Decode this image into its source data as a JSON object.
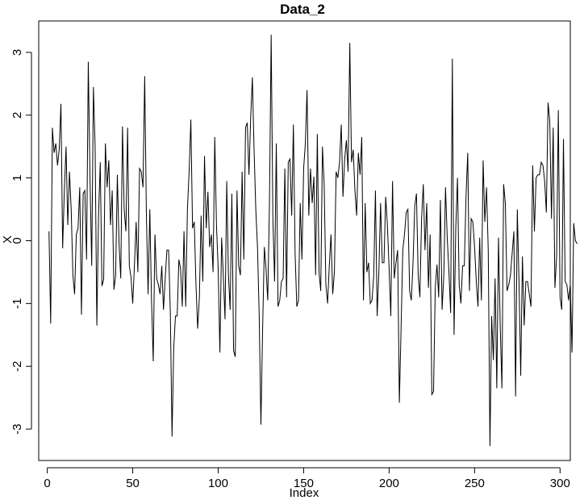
{
  "chart_data": {
    "type": "line",
    "title": "Data_2",
    "xlabel": "Index",
    "ylabel": "X",
    "xlim": [
      -5,
      306
    ],
    "ylim": [
      -3.5,
      3.5
    ],
    "x_ticks": [
      0,
      50,
      100,
      150,
      200,
      250,
      300
    ],
    "y_ticks": [
      -3,
      -2,
      -1,
      0,
      1,
      2,
      3
    ],
    "grid": false,
    "legend": "none",
    "line_color": "#000000",
    "series": [
      {
        "x_start": 1,
        "x_step": 1,
        "values": [
          0.15,
          -1.32,
          1.8,
          1.4,
          1.55,
          1.2,
          1.45,
          2.18,
          -0.12,
          0.8,
          1.5,
          0.25,
          1.1,
          0.5,
          -0.55,
          -0.85,
          0.1,
          0.2,
          0.85,
          -1.18,
          0.75,
          0.8,
          -0.3,
          2.85,
          1.0,
          -0.4,
          2.45,
          1.5,
          -1.35,
          0.4,
          1.25,
          -0.72,
          -0.62,
          1.55,
          0.85,
          1.28,
          0.25,
          0.8,
          -0.78,
          -0.55,
          1.05,
          -0.05,
          -0.6,
          1.82,
          0.5,
          0.15,
          1.8,
          -0.4,
          -0.58,
          -1.0,
          -0.4,
          0.3,
          -0.5,
          1.15,
          1.1,
          0.85,
          2.62,
          0.4,
          -0.85,
          0.5,
          -0.95,
          -1.92,
          0.1,
          -0.6,
          -0.7,
          -0.85,
          -0.4,
          -1.1,
          -0.6,
          -0.15,
          -0.15,
          -1.15,
          -3.12,
          -1.7,
          -1.2,
          -1.2,
          -0.3,
          -0.45,
          -1.05,
          0.15,
          -1.05,
          0.5,
          1.1,
          1.93,
          0.2,
          0.3,
          -0.7,
          -1.4,
          -0.9,
          0.4,
          -0.65,
          1.35,
          0.2,
          0.78,
          -0.1,
          0.1,
          -0.5,
          1.65,
          0.25,
          -0.45,
          -1.78,
          0.05,
          -0.55,
          -1.25,
          0.95,
          -0.55,
          -1.1,
          0.75,
          -1.75,
          -1.85,
          0.8,
          -0.4,
          -0.55,
          1.1,
          -0.3,
          1.8,
          1.88,
          1.05,
          1.95,
          2.6,
          1.45,
          0.5,
          -0.1,
          -1.2,
          -2.93,
          -1.4,
          -0.1,
          -0.45,
          -0.95,
          0.6,
          3.28,
          0.35,
          -0.65,
          1.55,
          -1.05,
          -0.95,
          -0.65,
          -0.6,
          1.15,
          -0.9,
          1.25,
          1.3,
          0.4,
          1.85,
          -0.2,
          -1.05,
          -0.95,
          0.6,
          -0.3,
          1.15,
          1.55,
          2.4,
          0.4,
          1.15,
          0.6,
          1.02,
          -0.55,
          1.7,
          -0.5,
          -0.8,
          1.5,
          0.9,
          -0.7,
          -1.0,
          -0.4,
          0.1,
          -0.85,
          -0.5,
          1.1,
          1.0,
          1.25,
          1.85,
          0.7,
          1.3,
          1.6,
          1.1,
          3.15,
          1.25,
          1.45,
          0.8,
          0.4,
          1.4,
          1.05,
          1.65,
          -0.95,
          0.6,
          -0.5,
          -0.35,
          -1.0,
          -0.95,
          -0.55,
          0.8,
          -1.2,
          -0.5,
          0.6,
          -0.35,
          -0.35,
          0.7,
          0.25,
          -0.45,
          -1.2,
          0.95,
          -0.6,
          -0.35,
          -0.15,
          -2.58,
          -1.4,
          -0.15,
          0.1,
          0.45,
          0.5,
          -0.8,
          -0.95,
          -0.35,
          0.55,
          0.75,
          -0.55,
          -0.9,
          0.35,
          0.9,
          -0.15,
          0.6,
          -0.75,
          0.1,
          -2.45,
          -2.4,
          -0.75,
          -0.38,
          -0.9,
          0.65,
          -1.1,
          -0.55,
          0.85,
          0.05,
          -0.5,
          -1.15,
          2.9,
          -1.5,
          0.2,
          1.0,
          -0.7,
          -1.0,
          -0.4,
          -0.4,
          0.7,
          1.4,
          -0.8,
          0.35,
          0.3,
          -0.1,
          -0.65,
          -1.05,
          0.05,
          -0.95,
          1.28,
          0.3,
          0.85,
          -0.15,
          -3.27,
          -1.2,
          -1.9,
          -0.6,
          -2.35,
          0.05,
          -1.35,
          -2.35,
          0.9,
          0.6,
          -0.8,
          -0.7,
          -0.55,
          -0.2,
          0.15,
          -2.48,
          0.5,
          -0.65,
          -2.15,
          -0.25,
          -1.35,
          -0.65,
          -0.65,
          -0.85,
          -1.05,
          1.2,
          0.15,
          1.0,
          1.05,
          1.05,
          1.25,
          1.2,
          0.95,
          0.45,
          2.2,
          1.9,
          0.35,
          1.8,
          -0.75,
          -0.25,
          2.08,
          -0.9,
          -1.1,
          1.62,
          -0.65,
          -0.7,
          -0.95,
          -0.7,
          -1.78,
          0.28,
          0.0,
          -0.05
        ]
      }
    ]
  }
}
